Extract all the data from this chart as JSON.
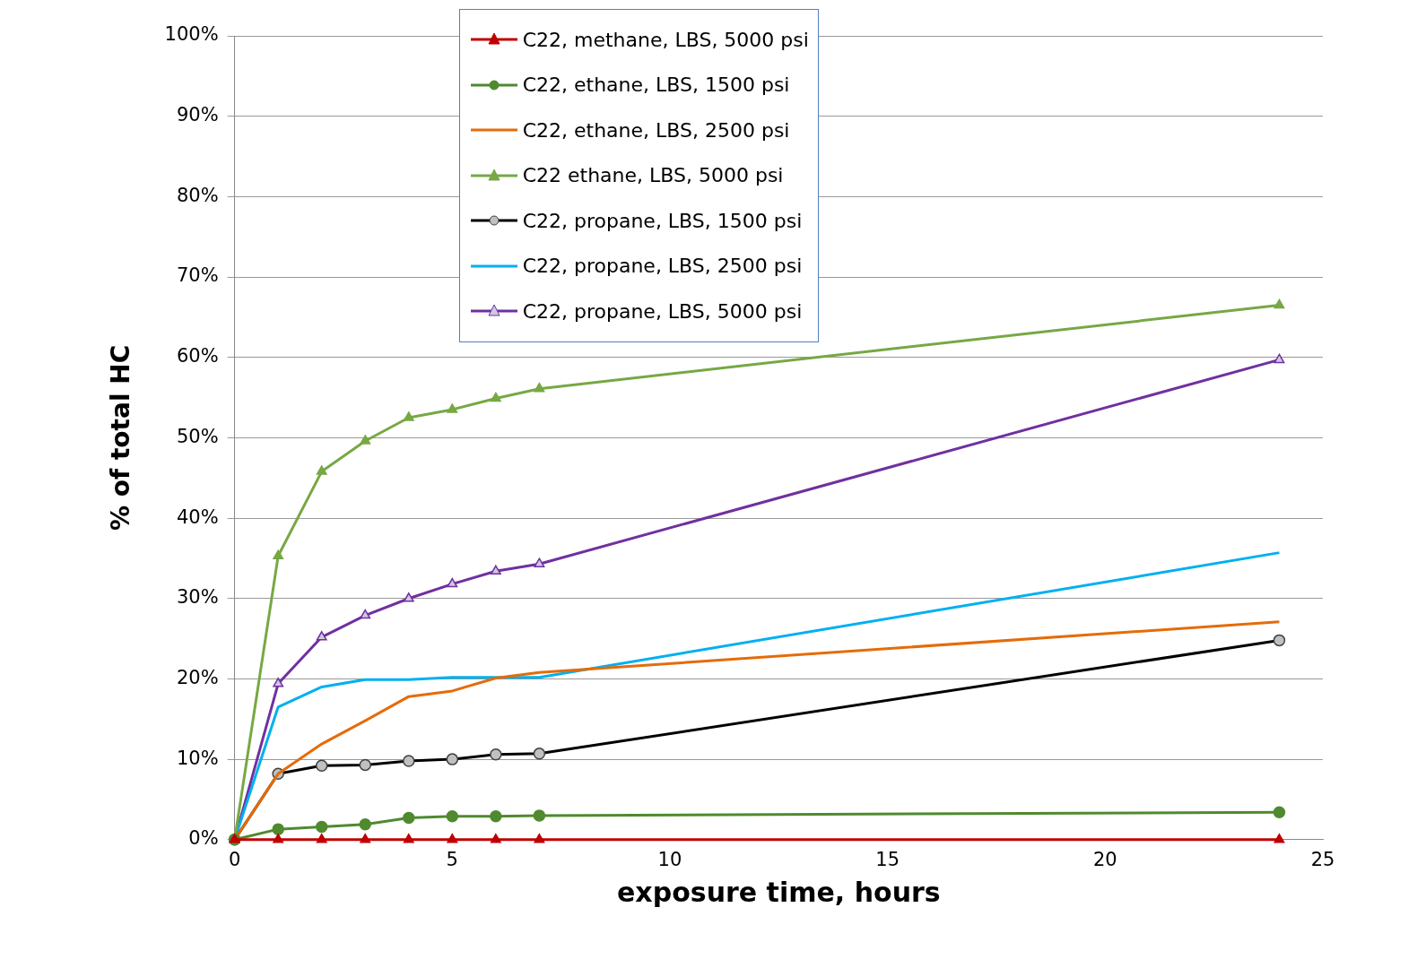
{
  "chart_data": {
    "type": "line",
    "xlabel": "exposure time, hours",
    "ylabel": "% of total HC",
    "x": [
      0,
      1,
      2,
      3,
      4,
      5,
      6,
      7,
      24
    ],
    "xlim": [
      0,
      25
    ],
    "xticks": [
      0,
      5,
      10,
      15,
      20,
      25
    ],
    "ylim": [
      0,
      100
    ],
    "yticks": [
      {
        "value": 0,
        "label": "0%"
      },
      {
        "value": 10,
        "label": "10%"
      },
      {
        "value": 20,
        "label": "20%"
      },
      {
        "value": 30,
        "label": "30%"
      },
      {
        "value": 40,
        "label": "40%"
      },
      {
        "value": 50,
        "label": "50%"
      },
      {
        "value": 60,
        "label": "60%"
      },
      {
        "value": 70,
        "label": "70%"
      },
      {
        "value": 80,
        "label": "80%"
      },
      {
        "value": 90,
        "label": "90%"
      },
      {
        "value": 100,
        "label": "100%"
      }
    ],
    "grid": "y",
    "legend": "top left",
    "series": [
      {
        "name": "C22, methane, LBS, 5000 psi",
        "color": "#c00000",
        "marker": "triangle",
        "values": [
          0,
          0,
          0,
          0,
          0,
          0,
          0,
          0,
          0
        ]
      },
      {
        "name": "C22, ethane, LBS, 1500 psi",
        "color": "#4f8a2f",
        "marker": "circle",
        "values": [
          0,
          1.3,
          1.6,
          1.9,
          2.7,
          2.9,
          2.9,
          3.0,
          3.4
        ]
      },
      {
        "name": "C22, ethane, LBS, 2500 psi",
        "color": "#e46c0a",
        "marker": "none",
        "values": [
          0,
          8.2,
          11.9,
          14.8,
          17.8,
          18.5,
          20.1,
          20.8,
          27.1
        ]
      },
      {
        "name": "C22 ethane, LBS, 5000 psi",
        "color": "#77a844",
        "marker": "triangle",
        "values": [
          0,
          35.3,
          45.8,
          49.6,
          52.5,
          53.5,
          54.9,
          56.1,
          66.5
        ]
      },
      {
        "name": "C22, propane, LBS, 1500 psi",
        "color": "#000000",
        "marker": "circle",
        "values": [
          0,
          8.2,
          9.2,
          9.3,
          9.8,
          10.0,
          10.6,
          10.7,
          24.8
        ]
      },
      {
        "name": "C22, propane, LBS, 2500 psi",
        "color": "#00b0f0",
        "marker": "none",
        "values": [
          0,
          16.5,
          19.0,
          19.9,
          19.9,
          20.2,
          20.2,
          20.2,
          35.7
        ]
      },
      {
        "name": "C22, propane, LBS, 5000 psi",
        "color": "#7030a0",
        "marker": "triangle",
        "values": [
          0,
          19.4,
          25.2,
          27.9,
          30.0,
          31.8,
          33.4,
          34.3,
          59.7
        ]
      }
    ]
  }
}
